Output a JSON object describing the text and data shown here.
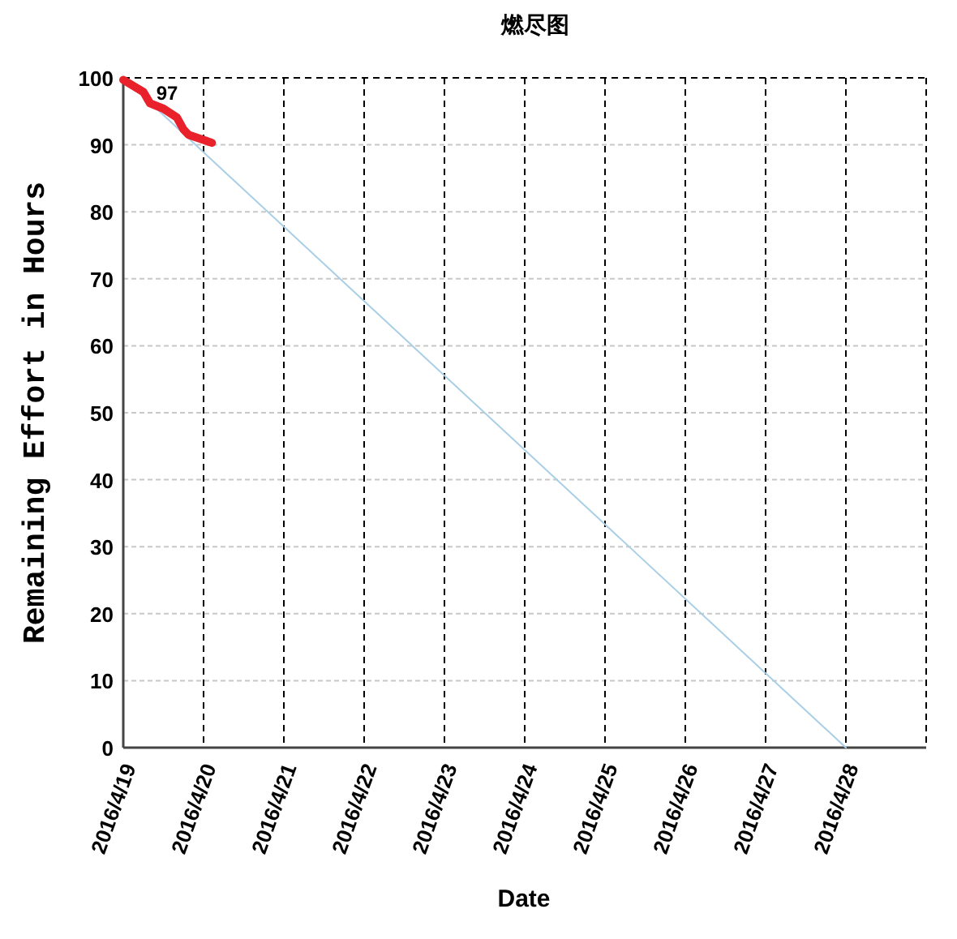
{
  "chart_data": {
    "type": "line",
    "title": "燃尽图",
    "xlabel": "Date",
    "ylabel": "Remaining Effort in Hours",
    "xlim": [
      "2016-04-19",
      "2016-04-29"
    ],
    "xticks": [
      {
        "value": "2016-04-19",
        "label": "2016/4/19"
      },
      {
        "value": "2016-04-20",
        "label": "2016/4/20"
      },
      {
        "value": "2016-04-21",
        "label": "2016/4/21"
      },
      {
        "value": "2016-04-22",
        "label": "2016/4/22"
      },
      {
        "value": "2016-04-23",
        "label": "2016/4/23"
      },
      {
        "value": "2016-04-24",
        "label": "2016/4/24"
      },
      {
        "value": "2016-04-25",
        "label": "2016/4/25"
      },
      {
        "value": "2016-04-26",
        "label": "2016/4/26"
      },
      {
        "value": "2016-04-27",
        "label": "2016/4/27"
      },
      {
        "value": "2016-04-28",
        "label": "2016/4/28"
      }
    ],
    "ylim": [
      0,
      100
    ],
    "yticks": [
      0,
      10,
      20,
      30,
      40,
      50,
      60,
      70,
      80,
      90,
      100
    ],
    "grid": true,
    "marker": "none",
    "line_style": "solid",
    "series": [
      {
        "color": "#a9cfe6",
        "x": [
          "2016-04-19",
          "2016-04-28"
        ],
        "values": [
          100,
          0
        ]
      },
      {
        "color": "#e8212a",
        "x": [
          "2016-04-19T00:00",
          "2016-04-19T06:00",
          "2016-04-19T08:00",
          "2016-04-19T12:00",
          "2016-04-19T16:00",
          "2016-04-19T18:00",
          "2016-04-19T19:30",
          "2016-04-20T02:30"
        ],
        "values": [
          99.7,
          97.9,
          96.2,
          95.4,
          94.1,
          92.3,
          91.5,
          90.3
        ]
      }
    ],
    "annotations": [
      {
        "text": "97",
        "x": "2016-04-19T05:00",
        "y": 97
      }
    ]
  }
}
